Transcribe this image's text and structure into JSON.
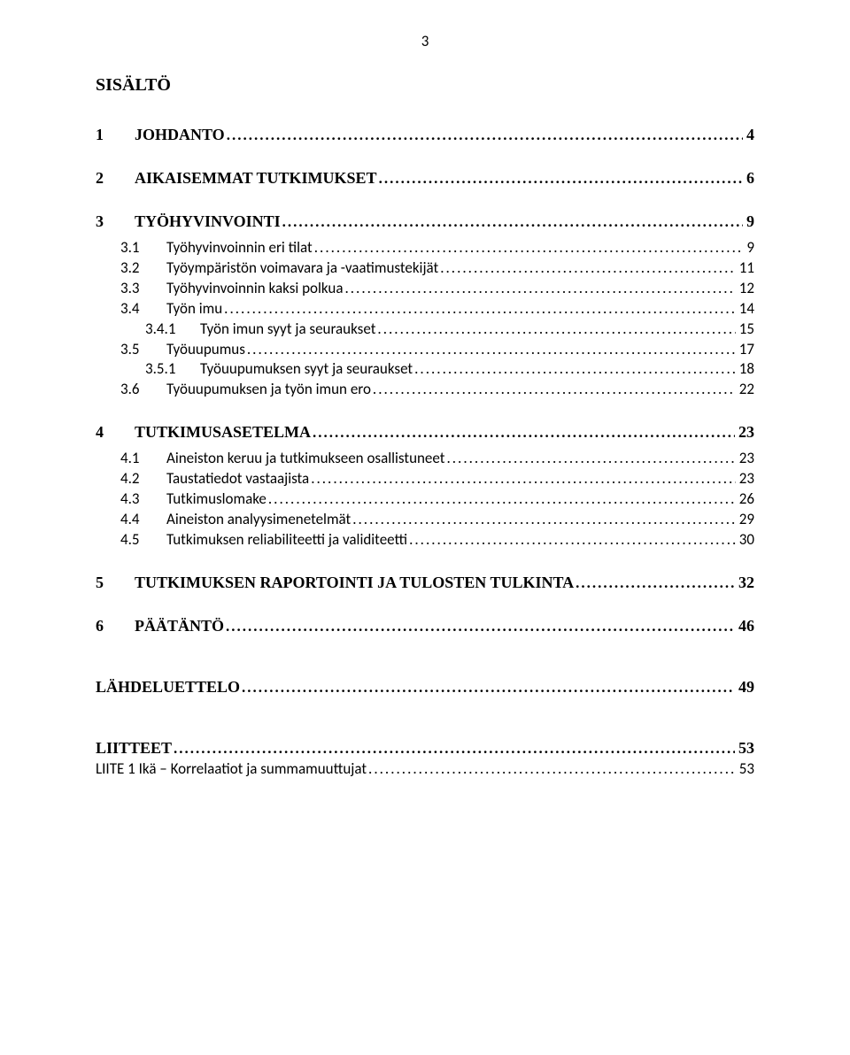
{
  "page_number": "3",
  "doc_title": "SISÄLTÖ",
  "toc": [
    {
      "level": 1,
      "num": "1",
      "label": "JOHDANTO",
      "page": "4",
      "gap_top": true
    },
    {
      "level": 1,
      "num": "2",
      "label": "AIKAISEMMAT TUTKIMUKSET",
      "page": "6",
      "gap_top": true
    },
    {
      "level": 1,
      "num": "3",
      "label": "TYÖHYVINVOINTI",
      "page": "9",
      "gap_top": true,
      "gap_bottom": true
    },
    {
      "level": 2,
      "num": "3.1",
      "label": "Työhyvinvoinnin eri tilat",
      "page": "9"
    },
    {
      "level": 2,
      "num": "3.2",
      "label": "Työympäristön voimavara ja -vaatimustekijät",
      "page": "11"
    },
    {
      "level": 2,
      "num": "3.3",
      "label": "Työhyvinvoinnin kaksi polkua",
      "page": "12"
    },
    {
      "level": 2,
      "num": "3.4",
      "label": "Työn imu",
      "page": "14"
    },
    {
      "level": 3,
      "num": "3.4.1",
      "label": "Työn imun syyt ja seuraukset",
      "page": "15"
    },
    {
      "level": 2,
      "num": "3.5",
      "label": "Työuupumus",
      "page": "17"
    },
    {
      "level": 3,
      "num": "3.5.1",
      "label": "Työuupumuksen syyt ja seuraukset",
      "page": "18"
    },
    {
      "level": 2,
      "num": "3.6",
      "label": "Työuupumuksen ja työn imun ero",
      "page": "22"
    },
    {
      "level": 1,
      "num": "4",
      "label": "TUTKIMUSASETELMA",
      "page": "23",
      "gap_top": true,
      "gap_bottom": true
    },
    {
      "level": 2,
      "num": "4.1",
      "label": "Aineiston keruu ja tutkimukseen osallistuneet",
      "page": "23"
    },
    {
      "level": 2,
      "num": "4.2",
      "label": "Taustatiedot vastaajista",
      "page": "23"
    },
    {
      "level": 2,
      "num": "4.3",
      "label": "Tutkimuslomake",
      "page": "26"
    },
    {
      "level": 2,
      "num": "4.4",
      "label": "Aineiston analyysimenetelmät",
      "page": "29"
    },
    {
      "level": 2,
      "num": "4.5",
      "label": "Tutkimuksen reliabiliteetti ja validiteetti",
      "page": "30"
    },
    {
      "level": 1,
      "num": "5",
      "label": "TUTKIMUKSEN RAPORTOINTI JA TULOSTEN TULKINTA",
      "page": "32",
      "gap_top": true
    },
    {
      "level": 1,
      "num": "6",
      "label": "PÄÄTÄNTÖ",
      "page": "46",
      "gap_top": true
    },
    {
      "level": 1,
      "num": "",
      "label": "LÄHDELUETTELO",
      "page": "49",
      "gap_top": true,
      "gap_top_large": true
    },
    {
      "level": 1,
      "num": "",
      "label": "LIITTEET",
      "page": "53",
      "gap_top": true,
      "gap_top_large": true
    },
    {
      "level": 2,
      "num": "",
      "label": "LIITE 1 Ikä – Korrelaatiot ja summamuuttujat",
      "page": "53",
      "no_indent": true
    }
  ]
}
